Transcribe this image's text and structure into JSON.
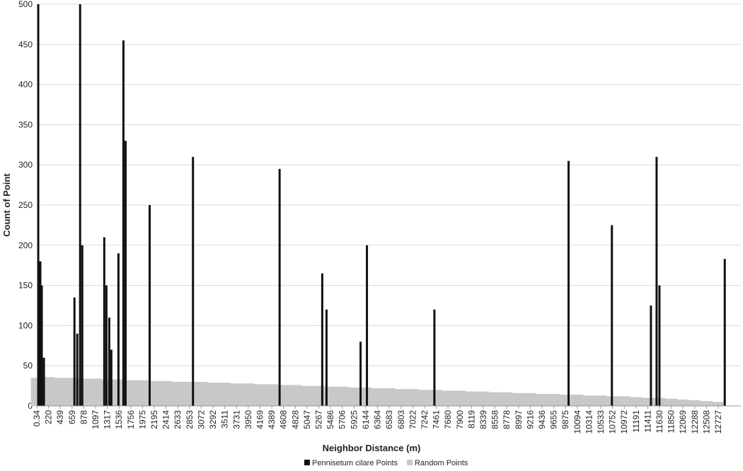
{
  "chart_data": {
    "type": "bar",
    "x_label": "Neighbor Distance (m)",
    "y_label": "Count of Point",
    "xlim": [
      0,
      13150
    ],
    "ylim": [
      0,
      500
    ],
    "yticks": [
      0,
      50,
      100,
      150,
      200,
      250,
      300,
      350,
      400,
      450,
      500
    ],
    "xticks": [
      0.34,
      220,
      439,
      659,
      878,
      1097,
      1317,
      1536,
      1756,
      1975,
      2195,
      2414,
      2633,
      2853,
      3072,
      3292,
      3511,
      3731,
      3950,
      4169,
      4389,
      4608,
      4828,
      5047,
      5267,
      5486,
      5706,
      5925,
      6144,
      6364,
      6583,
      6803,
      7022,
      7242,
      7461,
      7680,
      7900,
      8119,
      8339,
      8558,
      8778,
      8997,
      9216,
      9436,
      9655,
      9875,
      10094,
      10314,
      10533,
      10752,
      10972,
      11191,
      11411,
      11630,
      11850,
      12069,
      12288,
      12508,
      12727
    ],
    "grid": true,
    "series": [
      {
        "name": "Random Points",
        "color": "#c8c8c8",
        "x": [
          0.34,
          220,
          439,
          659,
          878,
          1097,
          1317,
          1536,
          1756,
          1975,
          2195,
          2414,
          2633,
          2853,
          3072,
          3292,
          3511,
          3731,
          3950,
          4169,
          4389,
          4608,
          4828,
          5047,
          5267,
          5486,
          5706,
          5925,
          6144,
          6364,
          6583,
          6803,
          7022,
          7242,
          7461,
          7680,
          7900,
          8119,
          8339,
          8558,
          8778,
          8997,
          9216,
          9436,
          9655,
          9875,
          10094,
          10314,
          10533,
          10752,
          10972,
          11191,
          11411,
          11630,
          11850,
          12069,
          12288,
          12508,
          12727
        ],
        "values": [
          35,
          36,
          35,
          35,
          34,
          34,
          33,
          33,
          32,
          32,
          31,
          31,
          30,
          30,
          30,
          29,
          29,
          28,
          28,
          27,
          27,
          26,
          26,
          25,
          25,
          24,
          24,
          23,
          23,
          22,
          22,
          21,
          21,
          20,
          20,
          19,
          19,
          18,
          18,
          17,
          17,
          16,
          16,
          15,
          15,
          14,
          14,
          13,
          13,
          12,
          12,
          11,
          10,
          10,
          9,
          8,
          7,
          6,
          5
        ]
      },
      {
        "name": "Pennisetum cilare Points",
        "color": "#111111",
        "x": [
          27,
          66,
          93,
          133,
          703,
          756,
          809,
          849,
          1260,
          1300,
          1353,
          1392,
          1525,
          1618,
          1658,
          2108,
          2917,
          4535,
          5331,
          5411,
          6047,
          6166,
          7426,
          9932,
          10741,
          11470,
          11576,
          11629,
          12849
        ],
        "values": [
          500,
          180,
          150,
          60,
          135,
          90,
          500,
          200,
          210,
          150,
          110,
          70,
          190,
          455,
          330,
          250,
          310,
          295,
          165,
          120,
          80,
          200,
          120,
          305,
          225,
          125,
          310,
          150,
          183
        ]
      }
    ],
    "legend": "bottom"
  }
}
